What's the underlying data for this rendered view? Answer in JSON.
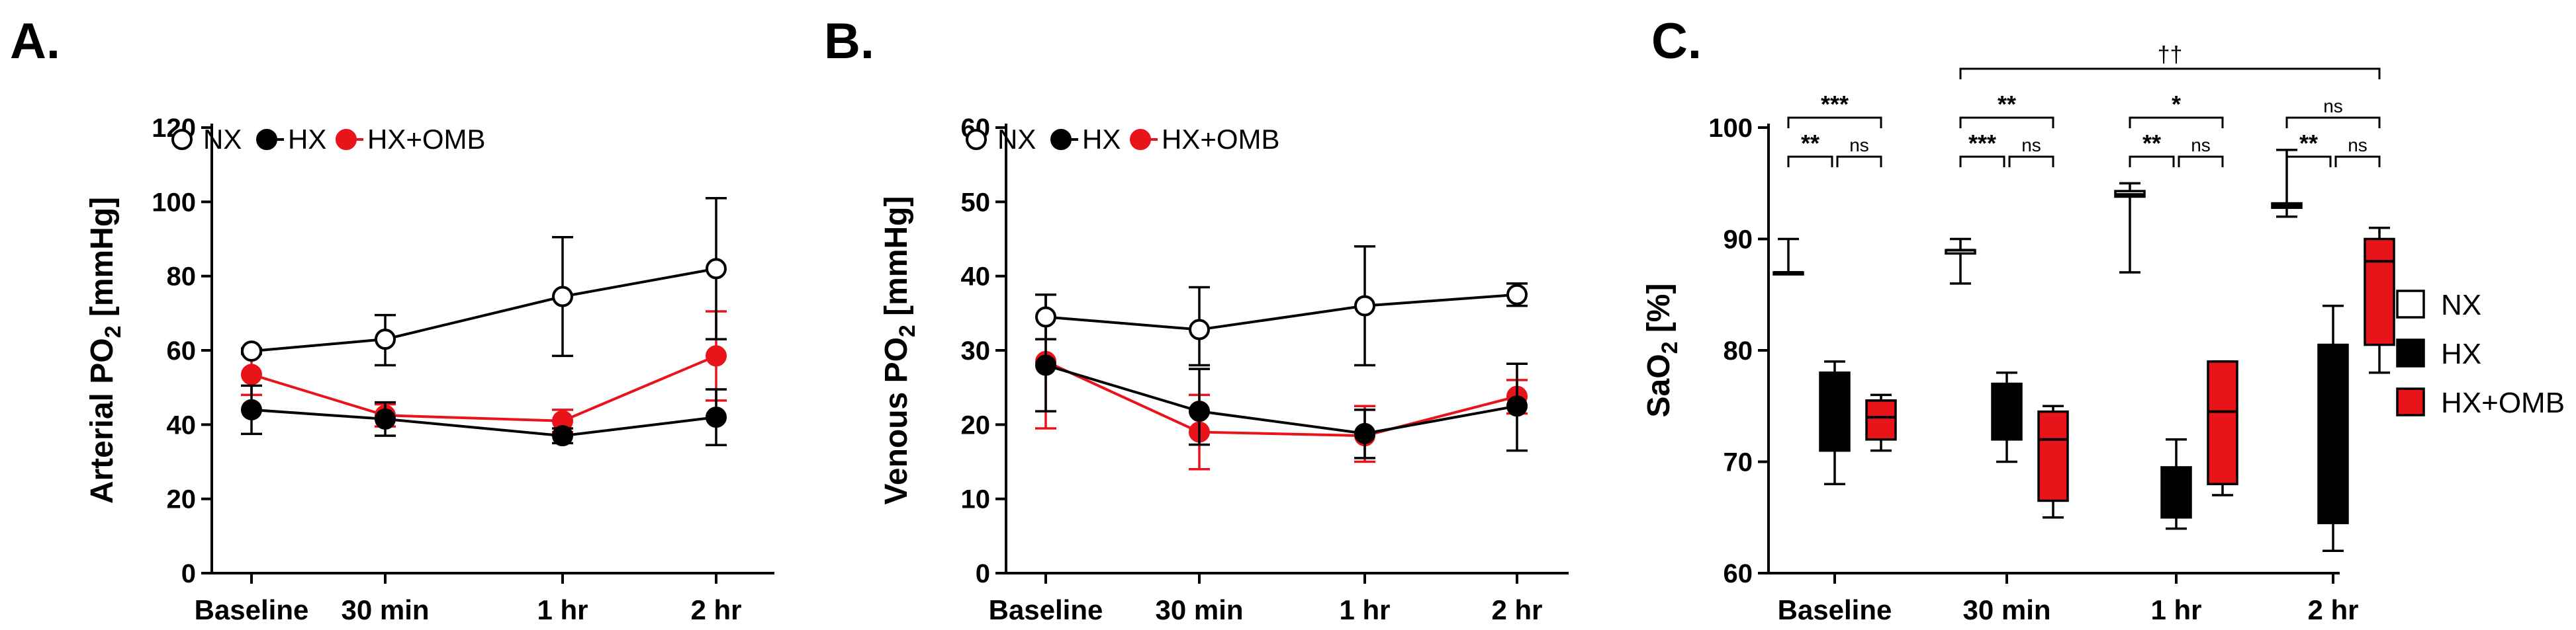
{
  "panels": [
    {
      "label": "A."
    },
    {
      "label": "B."
    },
    {
      "label": "C."
    }
  ],
  "chart_data": [
    {
      "type": "line",
      "panel": "A.",
      "ylabel_main": "Arterial PO",
      "ylabel_sub": "2",
      "ylabel_unit": " [mmHg]",
      "ylim": [
        0,
        120
      ],
      "yticks": [
        0,
        20,
        40,
        60,
        80,
        100,
        120
      ],
      "categories": [
        "Baseline",
        "30 min",
        "1 hr",
        "2 hr"
      ],
      "legend": {
        "placement": "top-left",
        "entries": [
          "NX",
          "HX",
          "HX+OMB"
        ]
      },
      "series": [
        {
          "name": "NX",
          "color": "#000000",
          "marker": "open-circle",
          "values": [
            59.8,
            63,
            74.5,
            82
          ],
          "err_low": [
            59.5,
            56,
            58.5,
            63
          ],
          "err_high": [
            60.5,
            69.5,
            90.5,
            101
          ]
        },
        {
          "name": "HX",
          "color": "#000000",
          "marker": "filled-circle",
          "values": [
            44,
            41.5,
            37,
            42
          ],
          "err_low": [
            37.5,
            37,
            35,
            34.5
          ],
          "err_high": [
            50.5,
            46,
            39,
            49.5
          ]
        },
        {
          "name": "HX+OMB",
          "color": "#e8141a",
          "marker": "filled-circle",
          "values": [
            53.5,
            42.5,
            41,
            58.5
          ],
          "err_low": [
            48,
            39.5,
            38,
            46.5
          ],
          "err_high": [
            59,
            45.5,
            44,
            70.5
          ]
        }
      ]
    },
    {
      "type": "line",
      "panel": "B.",
      "ylabel_main": "Venous PO",
      "ylabel_sub": "2",
      "ylabel_unit": " [mmHg]",
      "ylim": [
        0,
        60
      ],
      "yticks": [
        0,
        10,
        20,
        30,
        40,
        50,
        60
      ],
      "categories": [
        "Baseline",
        "30 min",
        "1 hr",
        "2 hr"
      ],
      "legend": {
        "placement": "top-left",
        "entries": [
          "NX",
          "HX",
          "HX+OMB"
        ]
      },
      "series": [
        {
          "name": "NX",
          "color": "#000000",
          "marker": "open-circle",
          "values": [
            34.5,
            32.8,
            36,
            37.5
          ],
          "err_low": [
            31.5,
            28,
            28,
            36
          ],
          "err_high": [
            37.5,
            38.5,
            44,
            39
          ]
        },
        {
          "name": "HX",
          "color": "#000000",
          "marker": "filled-circle",
          "values": [
            28,
            21.8,
            18.8,
            22.5
          ],
          "err_low": [
            21.8,
            17.3,
            15.5,
            16.5
          ],
          "err_high": [
            37.5,
            27.5,
            22,
            28.2
          ]
        },
        {
          "name": "HX+OMB",
          "color": "#e8141a",
          "marker": "filled-circle",
          "values": [
            28.5,
            19,
            18.5,
            23.8
          ],
          "err_low": [
            19.5,
            14,
            15,
            21.5
          ],
          "err_high": [
            37.5,
            24,
            22.5,
            26
          ]
        }
      ]
    },
    {
      "type": "box",
      "panel": "C.",
      "ylabel_main": "SaO",
      "ylabel_sub": "2",
      "ylabel_unit": " [%]",
      "ylim": [
        60,
        100
      ],
      "yticks": [
        60,
        70,
        80,
        90,
        100
      ],
      "categories": [
        "Baseline",
        "30 min",
        "1 hr",
        "2 hr"
      ],
      "legend": {
        "placement": "right",
        "entries": [
          {
            "name": "NX",
            "fill": "#ffffff"
          },
          {
            "name": "HX",
            "fill": "#000000"
          },
          {
            "name": "HX+OMB",
            "fill": "#e8141a"
          }
        ]
      },
      "groups": [
        {
          "category": "Baseline",
          "boxes": [
            {
              "series": "NX",
              "min": 87,
              "q1": 87,
              "median": 87,
              "q3": 87,
              "max": 90
            },
            {
              "series": "HX",
              "min": 68,
              "q1": 71,
              "median": 74,
              "q3": 78,
              "max": 79
            },
            {
              "series": "HX+OMB",
              "min": 71,
              "q1": 72,
              "median": 74,
              "q3": 75.5,
              "max": 76
            }
          ]
        },
        {
          "category": "30 min",
          "boxes": [
            {
              "series": "NX",
              "min": 86,
              "q1": 88.7,
              "median": 89,
              "q3": 89,
              "max": 90
            },
            {
              "series": "HX",
              "min": 70,
              "q1": 72,
              "median": 74,
              "q3": 77,
              "max": 78
            },
            {
              "series": "HX+OMB",
              "min": 65,
              "q1": 66.5,
              "median": 72,
              "q3": 74.5,
              "max": 75
            }
          ]
        },
        {
          "category": "1 hr",
          "boxes": [
            {
              "series": "NX",
              "min": 87,
              "q1": 93.8,
              "median": 94,
              "q3": 94.3,
              "max": 95
            },
            {
              "series": "HX",
              "min": 64,
              "q1": 65,
              "median": 67,
              "q3": 69.5,
              "max": 72
            },
            {
              "series": "HX+OMB",
              "min": 67,
              "q1": 68,
              "median": 74.5,
              "q3": 79,
              "max": 79
            }
          ]
        },
        {
          "category": "2 hr",
          "boxes": [
            {
              "series": "NX",
              "min": 92,
              "q1": 92.8,
              "median": 93,
              "q3": 93.2,
              "max": 98
            },
            {
              "series": "HX",
              "min": 62,
              "q1": 64.5,
              "median": 70,
              "q3": 80.5,
              "max": 84
            },
            {
              "series": "HX+OMB",
              "min": 78,
              "q1": 80.5,
              "median": 88,
              "q3": 90,
              "max": 91
            }
          ]
        }
      ],
      "significance": [
        {
          "category": "Baseline",
          "level": "outer",
          "from": "NX",
          "to": "HX+OMB",
          "label": "***"
        },
        {
          "category": "Baseline",
          "level": "inner",
          "from": "NX",
          "to": "HX",
          "label": "**"
        },
        {
          "category": "Baseline",
          "level": "inner",
          "from": "HX",
          "to": "HX+OMB",
          "label": "ns"
        },
        {
          "category": "30 min",
          "level": "outer",
          "from": "NX",
          "to": "HX+OMB",
          "label": "**"
        },
        {
          "category": "30 min",
          "level": "inner",
          "from": "NX",
          "to": "HX",
          "label": "***"
        },
        {
          "category": "30 min",
          "level": "inner",
          "from": "HX",
          "to": "HX+OMB",
          "label": "ns"
        },
        {
          "category": "1 hr",
          "level": "outer",
          "from": "NX",
          "to": "HX+OMB",
          "label": "*"
        },
        {
          "category": "1 hr",
          "level": "inner",
          "from": "NX",
          "to": "HX",
          "label": "**"
        },
        {
          "category": "1 hr",
          "level": "inner",
          "from": "HX",
          "to": "HX+OMB",
          "label": "ns"
        },
        {
          "category": "2 hr",
          "level": "outer",
          "from": "NX",
          "to": "HX+OMB",
          "label": "ns"
        },
        {
          "category": "2 hr",
          "level": "inner",
          "from": "NX",
          "to": "HX",
          "label": "**"
        },
        {
          "category": "2 hr",
          "level": "inner",
          "from": "HX",
          "to": "HX+OMB",
          "label": "ns"
        }
      ],
      "top_bracket": {
        "from_category": "30 min",
        "to_category": "2 hr",
        "label": "††"
      }
    }
  ]
}
